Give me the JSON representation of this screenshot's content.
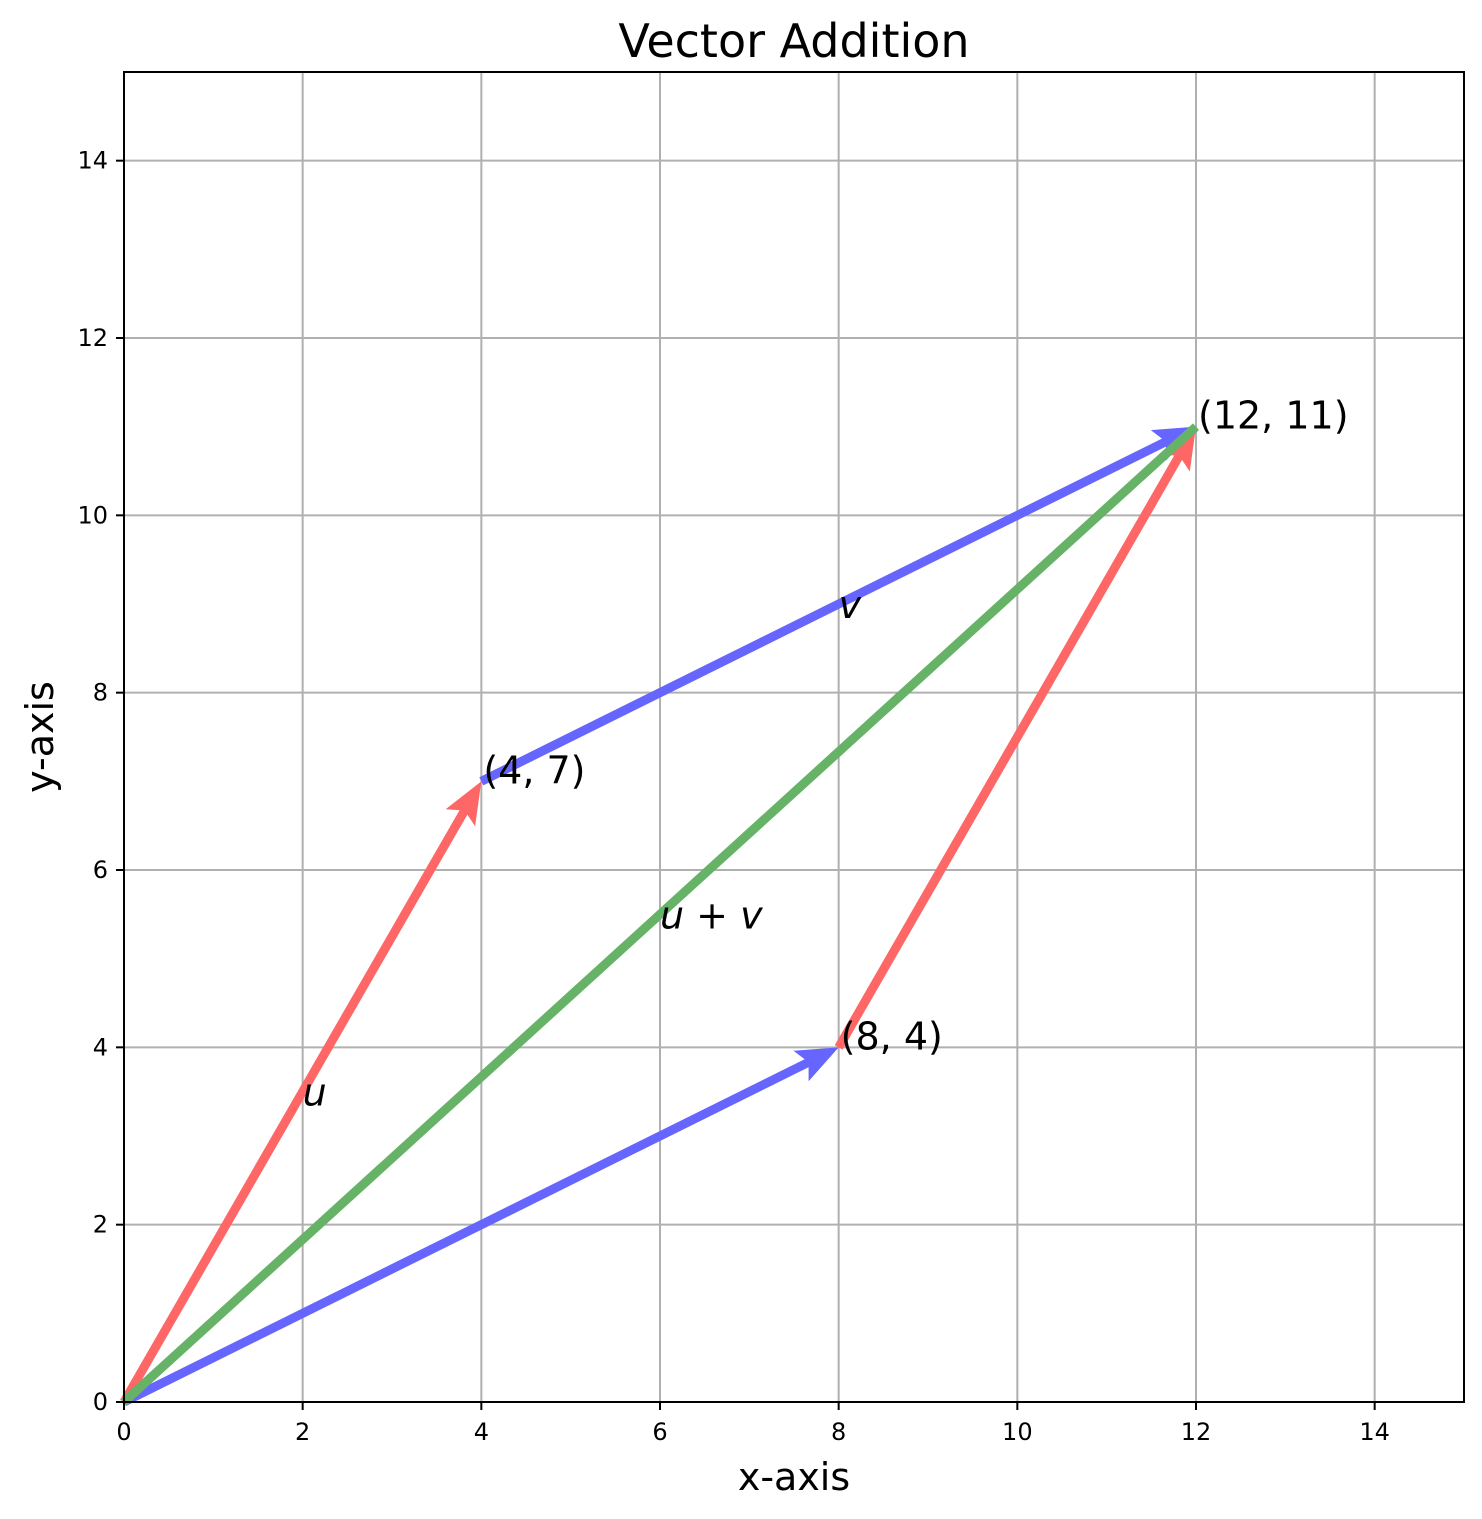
{
  "chart_data": {
    "type": "line",
    "title": "Vector Addition",
    "xlabel": "x-axis",
    "ylabel": "y-axis",
    "xlim": [
      0,
      15
    ],
    "ylim": [
      0,
      15
    ],
    "xticks": [
      0,
      2,
      4,
      6,
      8,
      10,
      12,
      14
    ],
    "yticks": [
      0,
      2,
      4,
      6,
      8,
      10,
      12,
      14
    ],
    "grid": true,
    "vectors": [
      {
        "id": "u-from-origin",
        "from": [
          0,
          0
        ],
        "to": [
          4,
          7
        ],
        "color": "#ff6666"
      },
      {
        "id": "v-from-u",
        "from": [
          4,
          7
        ],
        "to": [
          12,
          11
        ],
        "color": "#6666ff"
      },
      {
        "id": "v-from-origin",
        "from": [
          0,
          0
        ],
        "to": [
          8,
          4
        ],
        "color": "#6666ff"
      },
      {
        "id": "u-from-v",
        "from": [
          8,
          4
        ],
        "to": [
          12,
          11
        ],
        "color": "#ff6666"
      },
      {
        "id": "u-plus-v",
        "from": [
          0,
          0
        ],
        "to": [
          12,
          11
        ],
        "color": "#66b266",
        "arrowhead": false
      }
    ],
    "point_labels": [
      {
        "text": "(4, 7)",
        "at": [
          4,
          7
        ]
      },
      {
        "text": "(8, 4)",
        "at": [
          8,
          4
        ]
      },
      {
        "text": "(12, 11)",
        "at": [
          12,
          11
        ]
      }
    ],
    "vector_labels": [
      {
        "text": "u",
        "at": [
          2,
          3.5
        ]
      },
      {
        "text": "v",
        "at": [
          8,
          9
        ]
      },
      {
        "text": "u + v",
        "at": [
          6,
          5.5
        ]
      }
    ]
  }
}
